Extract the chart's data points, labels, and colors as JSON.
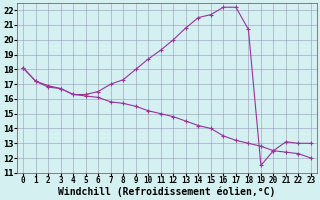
{
  "xlabel": "Windchill (Refroidissement éolien,°C)",
  "xlim": [
    -0.5,
    23.5
  ],
  "ylim": [
    11,
    22.5
  ],
  "yticks": [
    11,
    12,
    13,
    14,
    15,
    16,
    17,
    18,
    19,
    20,
    21,
    22
  ],
  "xticks": [
    0,
    1,
    2,
    3,
    4,
    5,
    6,
    7,
    8,
    9,
    10,
    11,
    12,
    13,
    14,
    15,
    16,
    17,
    18,
    19,
    20,
    21,
    22,
    23
  ],
  "line1_x": [
    0,
    1,
    2,
    3,
    4,
    5,
    6,
    7,
    8,
    9,
    10,
    11,
    12,
    13,
    14,
    15,
    16,
    17,
    18,
    19,
    20,
    21,
    22,
    23
  ],
  "line1_y": [
    18.1,
    17.2,
    16.8,
    16.7,
    16.3,
    16.2,
    16.1,
    15.8,
    15.7,
    15.5,
    15.2,
    15.0,
    14.8,
    14.5,
    14.2,
    14.0,
    13.5,
    13.2,
    13.0,
    12.8,
    12.5,
    12.4,
    12.3,
    12.0
  ],
  "line2_x": [
    0,
    1,
    2,
    3,
    4,
    5,
    6,
    7,
    8,
    9,
    10,
    11,
    12,
    13,
    14,
    15,
    16,
    17,
    18,
    19,
    20,
    21,
    22,
    23
  ],
  "line2_y": [
    18.1,
    17.2,
    16.9,
    16.7,
    16.3,
    16.3,
    16.5,
    17.0,
    17.3,
    18.0,
    18.7,
    19.3,
    20.0,
    20.8,
    21.5,
    21.7,
    22.2,
    22.2,
    20.7,
    11.5,
    12.5,
    13.1,
    13.0,
    13.0
  ],
  "line_color": "#993399",
  "bg_color": "#d4f0f0",
  "grid_color": "#9999bb",
  "tick_fontsize": 5.5,
  "xlabel_fontsize": 7.0
}
